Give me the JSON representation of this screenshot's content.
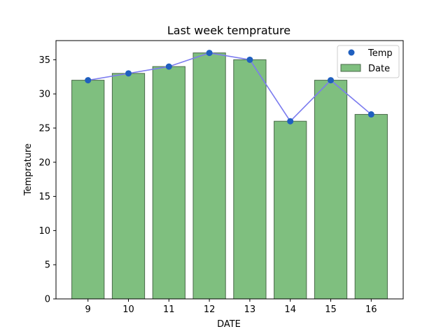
{
  "chart_data": {
    "type": "bar",
    "title": "Last week temprature",
    "xlabel": "DATE",
    "ylabel": "Temprature",
    "categories": [
      "9",
      "10",
      "11",
      "12",
      "13",
      "14",
      "15",
      "16"
    ],
    "series": [
      {
        "name": "Date",
        "kind": "bar",
        "values": [
          32,
          33,
          34,
          36,
          35,
          26,
          32,
          27
        ]
      },
      {
        "name": "Temp",
        "kind": "line+markers",
        "values": [
          32,
          33,
          34,
          36,
          35,
          26,
          32,
          27
        ]
      }
    ],
    "ylim": [
      0,
      37.8
    ],
    "yticks": [
      0,
      5,
      10,
      15,
      20,
      25,
      30,
      35
    ],
    "legend": {
      "position": "top-right",
      "entries": [
        "Temp",
        "Date"
      ]
    },
    "grid": false,
    "colors": {
      "bar_fill": "#7fbf7f",
      "bar_edge": "#4a6a4a",
      "line": "#7b7bef",
      "marker": "#1f5fbf"
    }
  }
}
